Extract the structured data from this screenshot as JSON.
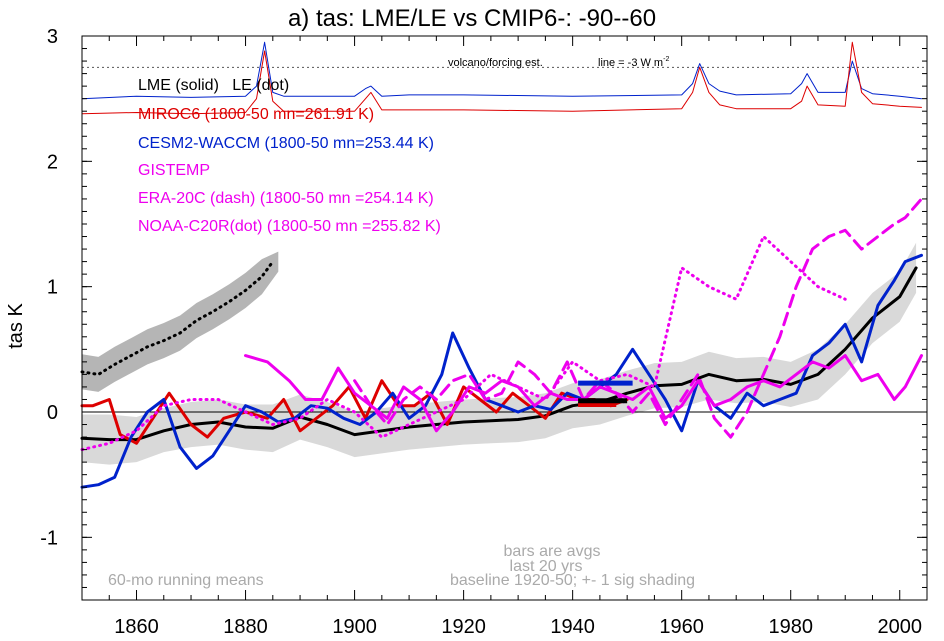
{
  "chart_data": {
    "type": "line",
    "title": "a) tas: LME/LE vs CMIP6-: -90--60",
    "ylabel": "tas K",
    "xlabel": "",
    "xlim": [
      1850,
      2005
    ],
    "ylim": [
      -1.5,
      3.0
    ],
    "x_ticks": [
      1860,
      1880,
      1900,
      1920,
      1940,
      1960,
      1980,
      2000
    ],
    "y_ticks": [
      -1,
      0,
      1,
      2,
      3
    ],
    "y_tick_labels": [
      "-1",
      "0",
      "1",
      "2",
      "3"
    ],
    "zero_line": true,
    "legend_entries": [
      "LME (solid)   LE (dot)",
      "MIROC6 (1800-50 mn=261.91 K)",
      "CESM2-WACCM (1800-50 mn=253.44 K)",
      "GISTEMP",
      "ERA-20C (dash) (1800-50 mn =254.14 K)",
      "NOAA-C20R(dot) (1800-50 mn =255.82 K)"
    ],
    "annotations": {
      "forcing_label": "volcano/forcing est.",
      "forcing_line": "line = -3 W m",
      "forcing_line_sup": "-2",
      "bars_note_1": "bars are avgs",
      "bars_note_2": "last 20 yrs",
      "running_mean": "60-mo running means",
      "baseline": "baseline 1920-50; +- 1 sig shading"
    },
    "forcing_reference_y": 2.75,
    "colors": {
      "lme": "#000000",
      "miroc6": "#dd0000",
      "cesm2": "#0022cc",
      "obs": "#ee00ee",
      "shading": "#d9d9d9",
      "le_shading": "#b5b5b5",
      "note": "#aaaaaa"
    },
    "series": [
      {
        "name": "LME (solid)",
        "style": "solid",
        "color": "#000000",
        "x": [
          1850,
          1855,
          1860,
          1865,
          1870,
          1875,
          1880,
          1885,
          1890,
          1895,
          1900,
          1905,
          1910,
          1915,
          1920,
          1925,
          1930,
          1935,
          1940,
          1945,
          1950,
          1955,
          1960,
          1965,
          1970,
          1975,
          1980,
          1985,
          1990,
          1995,
          2000,
          2003
        ],
        "y": [
          -0.21,
          -0.22,
          -0.22,
          -0.15,
          -0.1,
          -0.08,
          -0.12,
          -0.13,
          -0.04,
          -0.1,
          -0.18,
          -0.15,
          -0.12,
          -0.1,
          -0.08,
          -0.07,
          -0.06,
          -0.03,
          0.05,
          0.08,
          0.15,
          0.21,
          0.22,
          0.3,
          0.25,
          0.26,
          0.22,
          0.3,
          0.5,
          0.75,
          0.92,
          1.15
        ]
      },
      {
        "name": "LE (dot)",
        "style": "dot",
        "color": "#000000",
        "x": [
          1850,
          1853,
          1856,
          1859,
          1862,
          1865,
          1868,
          1871,
          1874,
          1877,
          1880,
          1883,
          1885
        ],
        "y": [
          0.32,
          0.3,
          0.38,
          0.45,
          0.52,
          0.57,
          0.63,
          0.73,
          0.8,
          0.88,
          0.97,
          1.08,
          1.2
        ]
      },
      {
        "name": "MIROC6",
        "style": "solid",
        "color": "#dd0000",
        "x": [
          1850,
          1852,
          1855,
          1857,
          1860,
          1863,
          1866,
          1870,
          1873,
          1876,
          1880,
          1884,
          1887,
          1890,
          1893,
          1896,
          1899,
          1902,
          1905,
          1908,
          1911,
          1914,
          1917,
          1920,
          1923,
          1926,
          1929,
          1932,
          1935,
          1938,
          1941,
          1944,
          1947,
          1950
        ],
        "y": [
          0.05,
          0.05,
          0.1,
          -0.18,
          -0.25,
          -0.05,
          0.15,
          -0.1,
          -0.2,
          -0.05,
          0.0,
          -0.05,
          0.1,
          -0.15,
          -0.05,
          0.05,
          0.2,
          -0.05,
          0.25,
          0.05,
          0.05,
          0.15,
          -0.1,
          0.2,
          0.1,
          0.0,
          0.15,
          0.05,
          -0.05,
          0.15,
          0.1,
          0.1,
          0.05,
          0.1
        ]
      },
      {
        "name": "CESM2-WACCM",
        "style": "solid",
        "color": "#0022cc",
        "x": [
          1850,
          1853,
          1856,
          1859,
          1862,
          1865,
          1868,
          1871,
          1874,
          1877,
          1880,
          1883,
          1886,
          1889,
          1892,
          1895,
          1898,
          1901,
          1904,
          1907,
          1910,
          1913,
          1916,
          1918,
          1921,
          1924,
          1927,
          1930,
          1933,
          1936,
          1939,
          1942,
          1945,
          1948,
          1951,
          1954,
          1957,
          1960,
          1963,
          1966,
          1969,
          1972,
          1975,
          1978,
          1981,
          1984,
          1987,
          1990,
          1993,
          1996,
          1999,
          2001,
          2004
        ],
        "y": [
          -0.6,
          -0.58,
          -0.52,
          -0.2,
          0.0,
          0.1,
          -0.28,
          -0.45,
          -0.35,
          -0.15,
          0.05,
          0.0,
          -0.08,
          -0.05,
          0.05,
          0.03,
          -0.05,
          -0.1,
          0.0,
          0.15,
          -0.05,
          0.05,
          0.3,
          0.63,
          0.35,
          0.1,
          0.05,
          0.0,
          0.05,
          0.02,
          0.15,
          0.1,
          0.2,
          0.3,
          0.5,
          0.3,
          0.1,
          -0.15,
          0.25,
          0.05,
          -0.05,
          0.15,
          0.05,
          0.1,
          0.15,
          0.45,
          0.55,
          0.7,
          0.4,
          0.85,
          1.05,
          1.2,
          1.25
        ]
      },
      {
        "name": "GISTEMP",
        "style": "solid",
        "color": "#ee00ee",
        "x": [
          1880,
          1884,
          1888,
          1891,
          1894,
          1897,
          1900,
          1903,
          1906,
          1909,
          1912,
          1915,
          1918,
          1921,
          1924,
          1927,
          1930,
          1933,
          1936,
          1939,
          1942,
          1945,
          1948,
          1951,
          1954,
          1957,
          1960,
          1963,
          1966,
          1969,
          1972,
          1975,
          1978,
          1981,
          1984,
          1987,
          1990,
          1993,
          1996,
          1999,
          2001,
          2004
        ],
        "y": [
          0.45,
          0.4,
          0.25,
          0.1,
          0.1,
          0.35,
          0.15,
          0.05,
          -0.05,
          0.2,
          0.1,
          -0.15,
          0.0,
          0.2,
          0.15,
          0.25,
          0.2,
          0.05,
          0.15,
          0.1,
          0.1,
          0.2,
          0.15,
          0.1,
          0.2,
          -0.05,
          0.05,
          0.25,
          0.05,
          0.1,
          0.2,
          0.25,
          0.2,
          0.3,
          0.4,
          0.35,
          0.45,
          0.25,
          0.3,
          0.1,
          0.2,
          0.45
        ]
      },
      {
        "name": "ERA-20C (dash)",
        "style": "dash",
        "color": "#ee00ee",
        "x": [
          1900,
          1903,
          1906,
          1909,
          1912,
          1915,
          1918,
          1921,
          1924,
          1927,
          1930,
          1933,
          1936,
          1939,
          1942,
          1945,
          1948,
          1951,
          1954,
          1957,
          1960,
          1963,
          1966,
          1969,
          1972,
          1975,
          1978,
          1981,
          1984,
          1987,
          1990,
          1993,
          1996,
          1999,
          2001,
          2004
        ],
        "y": [
          0.25,
          0.05,
          -0.1,
          0.1,
          0.2,
          0.1,
          0.25,
          0.3,
          0.1,
          0.15,
          0.4,
          0.3,
          0.15,
          0.4,
          0.1,
          0.25,
          0.15,
          0.0,
          0.15,
          -0.1,
          0.1,
          0.3,
          -0.05,
          -0.2,
          0.0,
          0.3,
          0.6,
          1.0,
          1.3,
          1.4,
          1.45,
          1.3,
          1.4,
          1.5,
          1.55,
          1.7
        ]
      },
      {
        "name": "NOAA-C20R(dot)",
        "style": "dot",
        "color": "#ee00ee",
        "x": [
          1850,
          1855,
          1860,
          1865,
          1870,
          1875,
          1880,
          1885,
          1890,
          1895,
          1900,
          1905,
          1910,
          1915,
          1920,
          1925,
          1930,
          1935,
          1940,
          1945,
          1950,
          1955,
          1960,
          1965,
          1970,
          1975,
          1980,
          1985,
          1990
        ],
        "y": [
          -0.3,
          -0.25,
          -0.15,
          0.05,
          0.1,
          0.1,
          0.0,
          -0.1,
          -0.05,
          0.1,
          0.0,
          -0.2,
          -0.1,
          0.0,
          0.1,
          0.3,
          0.2,
          0.1,
          0.4,
          0.25,
          0.3,
          0.2,
          1.15,
          1.0,
          0.9,
          1.4,
          1.2,
          1.0,
          0.9
        ]
      }
    ],
    "shading": {
      "x": [
        1850,
        1855,
        1860,
        1865,
        1870,
        1875,
        1880,
        1885,
        1890,
        1895,
        1900,
        1905,
        1910,
        1915,
        1920,
        1925,
        1930,
        1935,
        1940,
        1945,
        1950,
        1955,
        1960,
        1965,
        1970,
        1975,
        1980,
        1985,
        1990,
        1995,
        2000,
        2003
      ],
      "low": [
        -0.4,
        -0.42,
        -0.4,
        -0.32,
        -0.28,
        -0.26,
        -0.3,
        -0.32,
        -0.22,
        -0.28,
        -0.36,
        -0.33,
        -0.3,
        -0.28,
        -0.26,
        -0.25,
        -0.24,
        -0.21,
        -0.13,
        -0.1,
        -0.03,
        0.03,
        0.04,
        0.1,
        0.07,
        0.08,
        0.04,
        0.1,
        0.3,
        0.55,
        0.72,
        0.95
      ],
      "high": [
        -0.02,
        -0.02,
        -0.04,
        0.03,
        0.08,
        0.1,
        0.06,
        0.06,
        0.14,
        0.08,
        0.0,
        0.03,
        0.06,
        0.08,
        0.1,
        0.11,
        0.12,
        0.15,
        0.23,
        0.26,
        0.33,
        0.39,
        0.4,
        0.48,
        0.43,
        0.44,
        0.4,
        0.5,
        0.7,
        0.95,
        1.12,
        1.35
      ]
    },
    "le_shading": {
      "x": [
        1850,
        1853,
        1856,
        1859,
        1862,
        1865,
        1868,
        1871,
        1874,
        1877,
        1880,
        1883,
        1886
      ],
      "low": [
        0.18,
        0.16,
        0.24,
        0.31,
        0.38,
        0.43,
        0.49,
        0.59,
        0.66,
        0.74,
        0.83,
        0.94,
        1.12
      ],
      "high": [
        0.46,
        0.44,
        0.52,
        0.59,
        0.66,
        0.71,
        0.77,
        0.87,
        0.94,
        1.02,
        1.11,
        1.22,
        1.28
      ]
    },
    "forcing_series": [
      {
        "name": "CESM2-WACCM forcing",
        "color": "#0022cc",
        "x": [
          1850,
          1860,
          1870,
          1880,
          1882,
          1883.5,
          1885,
          1887,
          1890,
          1900,
          1902,
          1903,
          1905,
          1910,
          1920,
          1940,
          1960,
          1962,
          1963.3,
          1965,
          1967,
          1970,
          1980,
          1982,
          1983,
          1985,
          1990,
          1991.3,
          1993,
          1995,
          2000,
          2004
        ],
        "y": [
          2.5,
          2.52,
          2.51,
          2.52,
          2.6,
          2.95,
          2.55,
          2.52,
          2.52,
          2.52,
          2.58,
          2.6,
          2.52,
          2.53,
          2.53,
          2.52,
          2.53,
          2.62,
          2.78,
          2.62,
          2.56,
          2.53,
          2.54,
          2.62,
          2.7,
          2.55,
          2.55,
          2.8,
          2.58,
          2.54,
          2.52,
          2.5
        ]
      },
      {
        "name": "MIROC6 forcing",
        "color": "#dd0000",
        "x": [
          1850,
          1860,
          1870,
          1880,
          1882,
          1883.5,
          1885,
          1887,
          1890,
          1900,
          1902,
          1903,
          1905,
          1910,
          1920,
          1940,
          1960,
          1962,
          1963.3,
          1965,
          1967,
          1970,
          1980,
          1982,
          1983,
          1985,
          1990,
          1991.3,
          1993,
          1995,
          2000,
          2004
        ],
        "y": [
          2.38,
          2.39,
          2.38,
          2.39,
          2.5,
          2.88,
          2.48,
          2.4,
          2.4,
          2.4,
          2.5,
          2.55,
          2.41,
          2.41,
          2.41,
          2.4,
          2.42,
          2.55,
          2.75,
          2.55,
          2.45,
          2.42,
          2.42,
          2.48,
          2.6,
          2.45,
          2.44,
          2.95,
          2.55,
          2.46,
          2.44,
          2.43
        ]
      }
    ],
    "bars": [
      {
        "color": "#0022cc",
        "x1": 1941,
        "x2": 1951,
        "y": 0.23
      },
      {
        "color": "#dd0000",
        "x1": 1941,
        "x2": 1948,
        "y": 0.06
      },
      {
        "color": "#000000",
        "x1": 1941,
        "x2": 1950,
        "y": 0.09
      }
    ]
  }
}
